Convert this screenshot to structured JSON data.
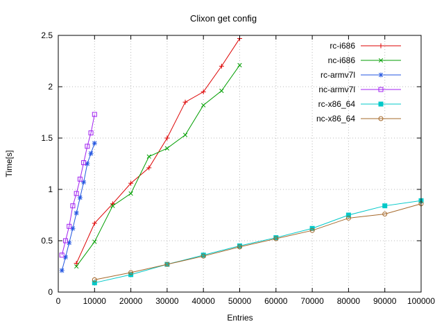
{
  "figure": {
    "background": "#ffffff"
  },
  "chart_data": {
    "type": "line",
    "title": "Clixon get config",
    "xlabel": "Entries",
    "ylabel": "Time[s]",
    "xlim": [
      0,
      100000
    ],
    "ylim": [
      0,
      2.5
    ],
    "xticks": [
      0,
      10000,
      20000,
      30000,
      40000,
      50000,
      60000,
      70000,
      80000,
      90000,
      100000
    ],
    "yticks": [
      0,
      0.5,
      1,
      1.5,
      2,
      2.5
    ],
    "grid": true,
    "grid_color": "#b8b8b8",
    "axis_color": "#000000",
    "legend_position": "top-right-inside",
    "series": [
      {
        "name": "rc-i686",
        "color": "#dd0000",
        "marker": "plus",
        "x": [
          5000,
          10000,
          15000,
          20000,
          25000,
          30000,
          35000,
          40000,
          45000,
          50000
        ],
        "y": [
          0.28,
          0.67,
          0.86,
          1.06,
          1.21,
          1.5,
          1.85,
          1.95,
          2.2,
          2.47
        ]
      },
      {
        "name": "nc-i686",
        "color": "#009e00",
        "marker": "cross",
        "x": [
          5000,
          10000,
          15000,
          20000,
          25000,
          30000,
          35000,
          40000,
          45000,
          50000
        ],
        "y": [
          0.25,
          0.49,
          0.84,
          0.96,
          1.32,
          1.4,
          1.53,
          1.82,
          1.96,
          2.21
        ]
      },
      {
        "name": "rc-armv7l",
        "color": "#2255e0",
        "marker": "asterisk",
        "x": [
          1000,
          2000,
          3000,
          4000,
          5000,
          6000,
          7000,
          8000,
          9000,
          10000
        ],
        "y": [
          0.21,
          0.34,
          0.48,
          0.62,
          0.77,
          0.92,
          1.07,
          1.25,
          1.35,
          1.45
        ]
      },
      {
        "name": "nc-armv7l",
        "color": "#a020f0",
        "marker": "square-open",
        "x": [
          1000,
          2000,
          3000,
          4000,
          5000,
          6000,
          7000,
          8000,
          9000,
          10000
        ],
        "y": [
          0.36,
          0.5,
          0.64,
          0.84,
          0.96,
          1.1,
          1.26,
          1.42,
          1.55,
          1.73
        ]
      },
      {
        "name": "rc-x86_64",
        "color": "#00c8c8",
        "marker": "square-filled",
        "x": [
          10000,
          20000,
          30000,
          40000,
          50000,
          60000,
          70000,
          80000,
          90000,
          100000
        ],
        "y": [
          0.09,
          0.17,
          0.27,
          0.36,
          0.45,
          0.53,
          0.62,
          0.75,
          0.84,
          0.89
        ]
      },
      {
        "name": "nc-x86_64",
        "color": "#a5682a",
        "marker": "circle-open",
        "x": [
          10000,
          20000,
          30000,
          40000,
          50000,
          60000,
          70000,
          80000,
          90000,
          100000
        ],
        "y": [
          0.12,
          0.19,
          0.27,
          0.35,
          0.44,
          0.52,
          0.6,
          0.72,
          0.76,
          0.86
        ]
      }
    ]
  }
}
